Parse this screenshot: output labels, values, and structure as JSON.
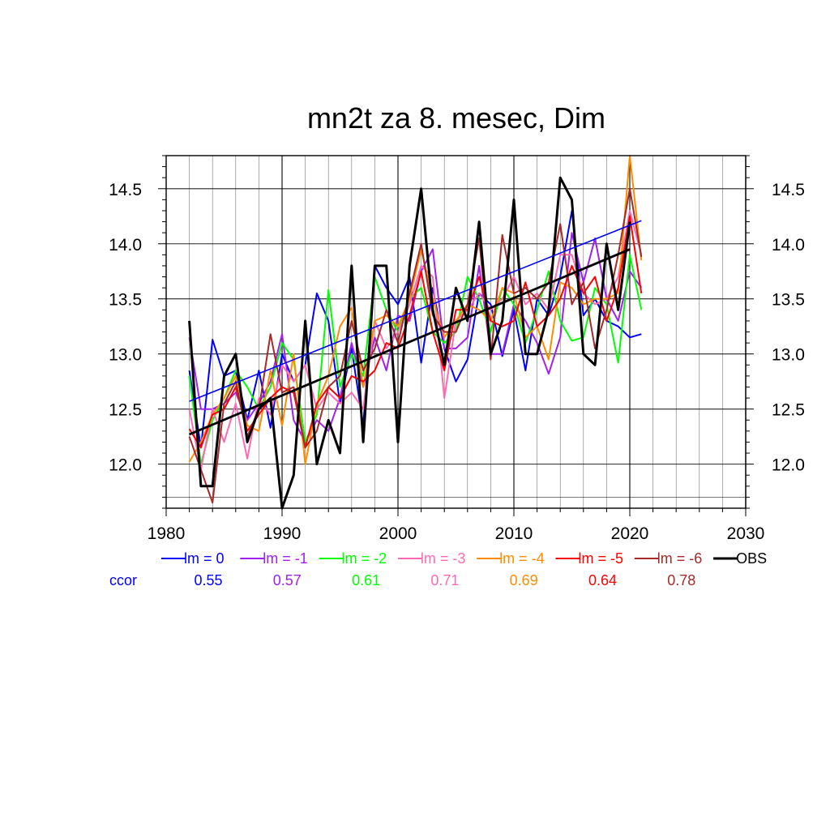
{
  "chart_data": {
    "type": "line",
    "title": "mn2t za 8. mesec, Dim",
    "xlim": [
      1980,
      2030
    ],
    "ylim": [
      11.6,
      14.8
    ],
    "xticks": [
      1980,
      1990,
      2000,
      2010,
      2020,
      2030
    ],
    "xtick_labels": [
      "1980",
      "1990",
      "2000",
      "2010",
      "2020",
      "2030"
    ],
    "yticks": [
      12.0,
      12.5,
      13.0,
      13.5,
      14.0,
      14.5
    ],
    "ytick_labels": [
      "12.0",
      "12.5",
      "13.0",
      "13.5",
      "14.0",
      "14.5"
    ],
    "grid": true,
    "ccor_label": "ccor",
    "years": [
      1982,
      1983,
      1984,
      1985,
      1986,
      1987,
      1988,
      1989,
      1990,
      1991,
      1992,
      1993,
      1994,
      1995,
      1996,
      1997,
      1998,
      1999,
      2000,
      2001,
      2002,
      2003,
      2004,
      2005,
      2006,
      2007,
      2008,
      2009,
      2010,
      2011,
      2012,
      2013,
      2014,
      2015,
      2016,
      2017,
      2018,
      2019,
      2020,
      2021
    ],
    "series": [
      {
        "name": "lm = 0",
        "ccor": "0.55",
        "color": "#0000ff",
        "values": [
          12.85,
          12.15,
          13.13,
          12.8,
          12.85,
          12.4,
          12.85,
          12.33,
          13.0,
          12.75,
          12.9,
          13.55,
          13.3,
          12.55,
          13.05,
          12.35,
          13.8,
          13.6,
          13.45,
          13.7,
          12.92,
          13.6,
          13.05,
          12.75,
          12.95,
          13.55,
          13.45,
          12.98,
          13.4,
          12.85,
          13.5,
          13.35,
          13.7,
          14.3,
          13.35,
          13.5,
          13.3,
          13.25,
          13.15,
          13.18
        ]
      },
      {
        "name": "lm = -1",
        "ccor": "0.57",
        "color": "#a020f0",
        "values": [
          13.15,
          12.5,
          12.5,
          12.55,
          12.65,
          12.4,
          12.55,
          12.75,
          13.18,
          12.4,
          12.2,
          12.4,
          12.3,
          12.6,
          13.1,
          12.7,
          13.15,
          12.85,
          13.35,
          13.3,
          13.75,
          13.95,
          13.05,
          13.05,
          13.15,
          13.8,
          13.0,
          13.0,
          13.45,
          13.3,
          13.1,
          12.82,
          13.15,
          14.1,
          13.65,
          14.05,
          13.5,
          13.3,
          13.75,
          13.6
        ]
      },
      {
        "name": "lm = -2",
        "ccor": "0.61",
        "color": "#00ff00",
        "values": [
          12.8,
          12.0,
          12.4,
          12.6,
          12.85,
          12.7,
          12.5,
          12.7,
          13.1,
          12.95,
          12.2,
          12.45,
          13.58,
          12.7,
          13.0,
          12.8,
          13.7,
          13.4,
          13.2,
          13.5,
          13.6,
          13.2,
          13.1,
          13.2,
          13.7,
          13.5,
          13.2,
          13.6,
          13.45,
          13.1,
          13.4,
          13.75,
          13.3,
          13.12,
          13.15,
          13.6,
          13.45,
          12.92,
          13.9,
          13.4
        ]
      },
      {
        "name": "lm = -3",
        "ccor": "0.71",
        "color": "#ff69b4",
        "values": [
          12.5,
          11.95,
          12.5,
          12.2,
          12.55,
          12.05,
          12.6,
          12.45,
          12.9,
          12.75,
          12.9,
          12.5,
          12.65,
          12.55,
          12.65,
          12.5,
          13.3,
          13.05,
          13.2,
          13.45,
          13.8,
          13.7,
          12.6,
          13.3,
          13.4,
          13.55,
          13.4,
          13.5,
          13.7,
          13.45,
          13.55,
          13.4,
          13.9,
          13.9,
          13.55,
          13.45,
          13.5,
          13.7,
          14.3,
          13.9
        ]
      },
      {
        "name": "lm = -4",
        "ccor": "0.69",
        "color": "#ff8c00",
        "values": [
          12.02,
          12.2,
          12.45,
          12.6,
          12.8,
          12.35,
          12.3,
          12.85,
          12.35,
          13.0,
          12.0,
          12.55,
          12.8,
          13.25,
          13.42,
          12.7,
          13.3,
          13.35,
          13.25,
          13.5,
          13.95,
          13.5,
          13.15,
          13.3,
          13.45,
          13.4,
          13.3,
          13.6,
          13.55,
          13.15,
          13.25,
          12.95,
          13.65,
          13.6,
          13.45,
          13.5,
          13.5,
          13.55,
          14.8,
          13.85
        ]
      },
      {
        "name": "lm = -5",
        "ccor": "0.64",
        "color": "#ff0000",
        "values": [
          12.32,
          12.15,
          12.45,
          12.5,
          12.7,
          12.3,
          12.45,
          12.6,
          12.7,
          12.65,
          12.15,
          12.55,
          12.7,
          12.6,
          12.8,
          12.75,
          12.85,
          13.1,
          13.05,
          13.35,
          13.75,
          13.2,
          12.85,
          13.4,
          13.4,
          13.7,
          13.3,
          13.25,
          13.3,
          13.65,
          13.25,
          13.35,
          13.5,
          13.8,
          13.55,
          13.7,
          13.3,
          13.6,
          14.25,
          13.55
        ]
      },
      {
        "name": "lm = -6",
        "ccor": "0.78",
        "color": "#a52a2a",
        "values": [
          12.25,
          11.95,
          11.65,
          12.55,
          12.75,
          12.25,
          12.5,
          13.18,
          12.65,
          12.7,
          12.15,
          12.3,
          12.7,
          12.8,
          13.3,
          12.85,
          13.05,
          13.4,
          13.1,
          13.55,
          14.0,
          13.35,
          13.2,
          13.2,
          13.45,
          14.05,
          12.95,
          14.08,
          13.55,
          13.6,
          13.5,
          13.65,
          14.18,
          13.45,
          13.65,
          13.05,
          13.4,
          13.9,
          14.5,
          13.88
        ]
      },
      {
        "name": "OBS",
        "ccor": "",
        "color": "#000000",
        "values": [
          13.3,
          11.8,
          11.8,
          12.8,
          13.0,
          12.2,
          12.5,
          12.6,
          11.6,
          11.9,
          13.3,
          12.0,
          12.4,
          12.1,
          13.8,
          12.2,
          13.8,
          13.8,
          12.2,
          13.8,
          14.5,
          13.4,
          12.9,
          13.6,
          13.3,
          14.2,
          13.0,
          13.3,
          14.4,
          13.0,
          13.0,
          13.4,
          14.6,
          14.4,
          13.0,
          12.9,
          14.0,
          13.4,
          14.2,
          null
        ]
      }
    ],
    "trend_lines": [
      {
        "name": "lm = 0 trend",
        "color": "#0000ff",
        "x": [
          1982,
          2021
        ],
        "y": [
          12.57,
          14.21
        ]
      },
      {
        "name": "OBS trend",
        "color": "#000000",
        "x": [
          1982,
          2020
        ],
        "y": [
          12.27,
          13.95
        ]
      }
    ]
  }
}
